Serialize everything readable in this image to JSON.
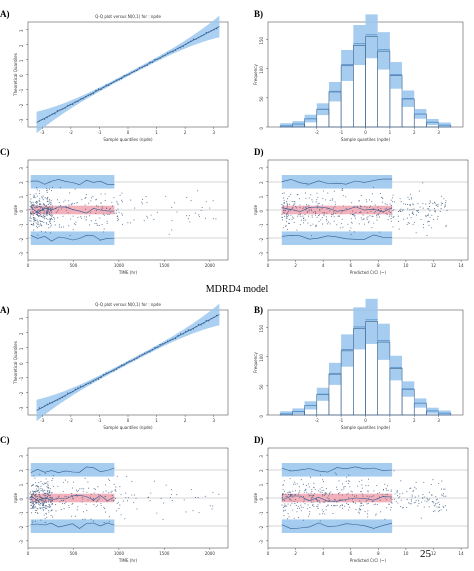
{
  "panel_labels": {
    "top_a": "A)",
    "top_b": "B)",
    "top_c": "C)",
    "top_d": "D)",
    "bot_a": "A)",
    "bot_b": "B)",
    "bot_c": "C)",
    "bot_d": "D)"
  },
  "section_title": "MDRD4 model",
  "page_number": "25",
  "colors": {
    "band": "#9cc8ee",
    "band_dark": "#5d97cf",
    "median_band": "#f2a9b4",
    "points": "#35557d",
    "line": "#3b6fa6"
  },
  "chart_data": [
    {
      "panel": "top-A",
      "type": "scatter",
      "title": "Q-Q plot versus N(0,1) for : npde",
      "xlabel": "Sample quantiles (npde)",
      "ylabel": "Theoretical Quantiles",
      "xticks": [
        "-3",
        "-2",
        "-1",
        "0",
        "1",
        "2",
        "3"
      ],
      "yticks": [
        "-3",
        "-2",
        "-1",
        "0",
        "1",
        "2",
        "3"
      ],
      "xlim": [
        -3.5,
        3.5
      ],
      "ylim": [
        -3.5,
        3.5
      ]
    },
    {
      "panel": "top-B",
      "type": "bar",
      "xlabel": "Sample quantiles (npde)",
      "ylabel": "Frequency",
      "categories": [
        "-3.5",
        "-3",
        "-2.5",
        "-2",
        "-1.5",
        "-1",
        "-0.5",
        "0",
        "0.5",
        "1",
        "1.5",
        "2",
        "2.5",
        "3"
      ],
      "values": [
        2,
        5,
        14,
        30,
        60,
        105,
        140,
        155,
        130,
        88,
        48,
        22,
        8,
        3
      ],
      "xticks": [
        "-2",
        "-1",
        "0",
        "1",
        "2",
        "3"
      ],
      "yticks": [
        "0",
        "50",
        "100",
        "150"
      ],
      "ylim": [
        0,
        180
      ]
    },
    {
      "panel": "top-C",
      "type": "scatter",
      "xlabel": "TIME (hr)",
      "ylabel": "npde",
      "xticks": [
        "0",
        "500",
        "1000",
        "1500",
        "2000"
      ],
      "yticks": [
        "-3",
        "-2",
        "-1",
        "0",
        "1",
        "2",
        "3"
      ],
      "xlim": [
        0,
        2200
      ],
      "ylim": [
        -3.5,
        3.5
      ]
    },
    {
      "panel": "top-D",
      "type": "scatter",
      "xlabel": "Predicted CrCl (~)",
      "ylabel": "npde",
      "xticks": [
        "0",
        "2",
        "4",
        "6",
        "8",
        "10",
        "12",
        "14"
      ],
      "yticks": [
        "-3",
        "-2",
        "-1",
        "0",
        "1",
        "2",
        "3"
      ],
      "xlim": [
        0,
        14.5
      ],
      "ylim": [
        -3.5,
        3.5
      ]
    },
    {
      "panel": "bottom-A",
      "type": "scatter",
      "title": "Q-Q plot versus N(0,1) for : npde",
      "xlabel": "Sample quantiles (npde)",
      "ylabel": "Theoretical Quantiles",
      "xticks": [
        "-3",
        "-2",
        "-1",
        "0",
        "1",
        "2",
        "3"
      ],
      "yticks": [
        "-3",
        "-2",
        "-1",
        "0",
        "1",
        "2",
        "3"
      ],
      "xlim": [
        -3.5,
        3.5
      ],
      "ylim": [
        -3.5,
        3.5
      ]
    },
    {
      "panel": "bottom-B",
      "type": "bar",
      "xlabel": "Sample quantiles (npde)",
      "ylabel": "Frequency",
      "categories": [
        "-3.5",
        "-3",
        "-2.5",
        "-2",
        "-1.5",
        "-1",
        "-0.5",
        "0",
        "0.5",
        "1",
        "1.5",
        "2",
        "2.5",
        "3"
      ],
      "values": [
        2,
        6,
        16,
        35,
        70,
        110,
        148,
        160,
        125,
        80,
        44,
        20,
        7,
        3
      ],
      "xticks": [
        "-2",
        "-1",
        "0",
        "1",
        "2",
        "3"
      ],
      "yticks": [
        "0",
        "50",
        "100",
        "150"
      ],
      "ylim": [
        0,
        180
      ]
    },
    {
      "panel": "bottom-C",
      "type": "scatter",
      "xlabel": "TIME (hr)",
      "ylabel": "npde",
      "xticks": [
        "0",
        "500",
        "1000",
        "1500",
        "2000"
      ],
      "yticks": [
        "-3",
        "-2",
        "-1",
        "0",
        "1",
        "2",
        "3"
      ],
      "xlim": [
        0,
        2200
      ],
      "ylim": [
        -3.5,
        3.5
      ]
    },
    {
      "panel": "bottom-D",
      "type": "scatter",
      "xlabel": "Predicted CrCl (~)",
      "ylabel": "npde",
      "xticks": [
        "0",
        "2",
        "4",
        "6",
        "8",
        "10",
        "12",
        "14"
      ],
      "yticks": [
        "-3",
        "-2",
        "-1",
        "0",
        "1",
        "2",
        "3"
      ],
      "xlim": [
        0,
        14.5
      ],
      "ylim": [
        -3.5,
        3.5
      ]
    }
  ]
}
